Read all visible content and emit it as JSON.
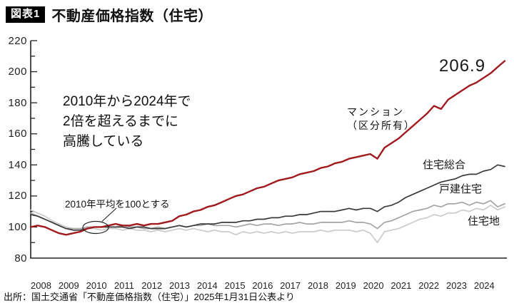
{
  "header": {
    "badge": "図表1",
    "title": "不動産価格指数（住宅）"
  },
  "annotations": {
    "highlight_note": "2010年から2024年で\n2倍を超えるまでに\n高騰している",
    "base_note": "2010年平均を100とする",
    "end_value_label": "206.9"
  },
  "source": "出所：国土交通省「不動産価格指数（住宅）」2025年1月31日公表より",
  "colors": {
    "mansion": "#a11a1f",
    "sougou": "#3a3a3a",
    "kodate": "#a3a3a3",
    "takuchi": "#cbcbcb",
    "axis": "#222222"
  },
  "chart_data": {
    "type": "line",
    "title": "不動産価格指数（住宅）",
    "subtitle_note": "2010年平均を100とする",
    "x_start_year": 2008,
    "points_per_year": 4,
    "x_tick_labels": [
      "2008",
      "2009",
      "2010",
      "2011",
      "2012",
      "2013",
      "2014",
      "2015",
      "2016",
      "2017",
      "2018",
      "2019",
      "2020",
      "2021",
      "2022",
      "2023",
      "2024"
    ],
    "y_ticks": [
      80,
      100,
      120,
      140,
      160,
      180,
      200,
      220
    ],
    "y_minor_step": 10,
    "ylim": [
      80,
      220
    ],
    "grid": false,
    "legend_position": "inline-right",
    "series": [
      {
        "name": "マンション（区分所有）",
        "label_short": "マンション\n（区分所有）",
        "color": "#a11a1f",
        "width": 2.4,
        "end_value": 206.9,
        "values": [
          100,
          101,
          100,
          98,
          96,
          95,
          96,
          97,
          99,
          100,
          100,
          101,
          102,
          101,
          101,
          102,
          101,
          102,
          102,
          103,
          104,
          107,
          108,
          110,
          111,
          113,
          114,
          116,
          118,
          120,
          121,
          123,
          125,
          126,
          128,
          130,
          131,
          132,
          134,
          135,
          136,
          138,
          139,
          141,
          142,
          144,
          145,
          146,
          147,
          144,
          151,
          154,
          157,
          161,
          165,
          169,
          173,
          178,
          176,
          182,
          185,
          188,
          191,
          193,
          196,
          199,
          203,
          206.9
        ]
      },
      {
        "name": "住宅総合",
        "label_short": "住宅総合",
        "color": "#3a3a3a",
        "width": 1.7,
        "end_value": 139,
        "values": [
          108,
          107,
          105,
          103,
          101,
          99,
          98,
          98,
          99,
          100,
          100,
          100,
          100,
          100,
          99,
          100,
          100,
          99,
          99,
          99,
          100,
          101,
          100,
          101,
          102,
          102,
          102,
          103,
          103,
          103,
          104,
          104,
          105,
          105,
          106,
          106,
          107,
          107,
          108,
          108,
          109,
          110,
          110,
          110,
          111,
          112,
          111,
          112,
          112,
          110,
          113,
          114,
          116,
          119,
          121,
          123,
          125,
          127,
          129,
          130,
          131,
          133,
          134,
          134,
          136,
          137,
          140,
          139
        ]
      },
      {
        "name": "戸建住宅",
        "label_short": "戸建住宅",
        "color": "#a3a3a3",
        "width": 1.7,
        "end_value": 115,
        "values": [
          109,
          107,
          105,
          103,
          101,
          99,
          99,
          99,
          100,
          100,
          100,
          100,
          100,
          101,
          100,
          100,
          99,
          99,
          100,
          99,
          100,
          101,
          100,
          101,
          101,
          102,
          101,
          101,
          101,
          100,
          101,
          102,
          101,
          102,
          102,
          101,
          102,
          102,
          103,
          102,
          102,
          103,
          103,
          103,
          103,
          104,
          103,
          103,
          102,
          99,
          103,
          104,
          106,
          108,
          110,
          111,
          112,
          114,
          113,
          115,
          115,
          116,
          114,
          116,
          115,
          117,
          113,
          115
        ]
      },
      {
        "name": "住宅地",
        "label_short": "住宅地",
        "color": "#cbcbcb",
        "width": 1.7,
        "end_value": 113,
        "values": [
          111,
          109,
          107,
          104,
          102,
          100,
          99,
          99,
          99,
          99,
          98,
          99,
          99,
          98,
          99,
          98,
          98,
          97,
          98,
          97,
          98,
          99,
          98,
          99,
          98,
          97,
          98,
          97,
          97,
          95,
          97,
          96,
          97,
          96,
          97,
          96,
          97,
          96,
          97,
          97,
          97,
          98,
          97,
          98,
          98,
          98,
          97,
          98,
          96,
          90,
          97,
          98,
          99,
          101,
          103,
          105,
          106,
          108,
          107,
          109,
          109,
          111,
          110,
          112,
          111,
          114,
          111,
          113
        ]
      }
    ]
  }
}
